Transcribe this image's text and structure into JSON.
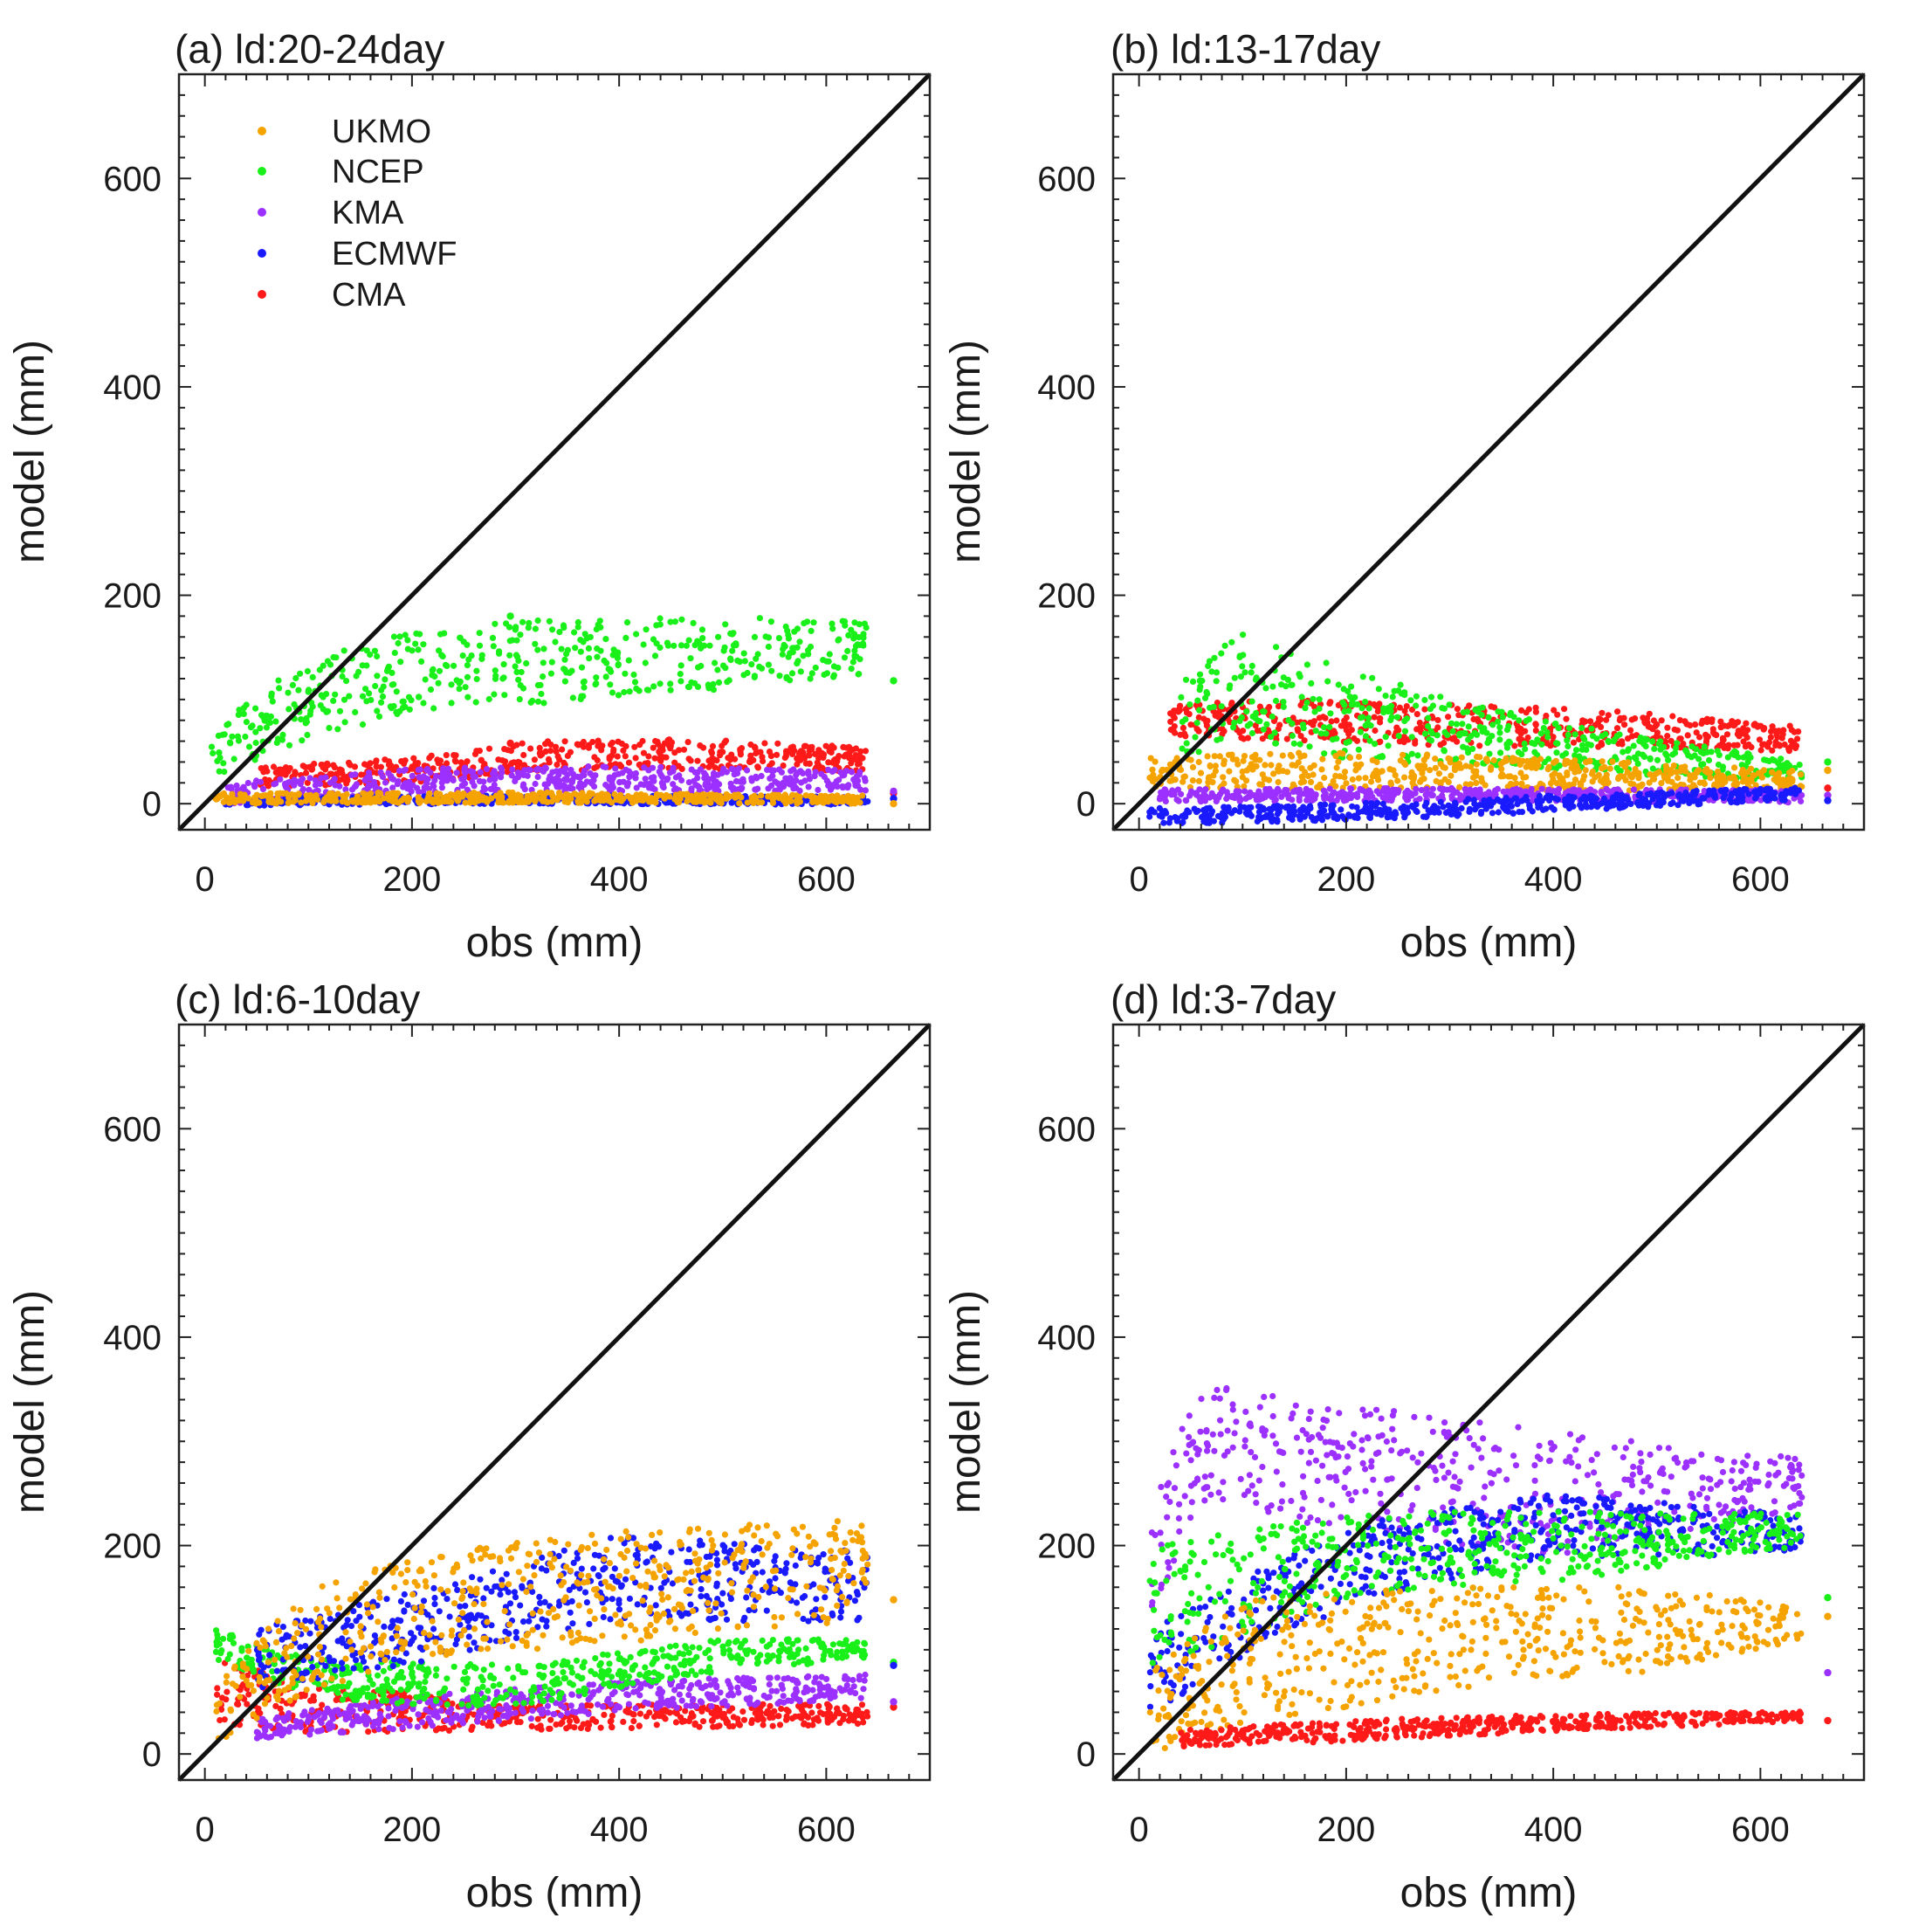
{
  "figure": {
    "colors": {
      "UKMO": "#f5a300",
      "NCEP": "#19f019",
      "KMA": "#9b30ff",
      "ECMWF": "#1a1aff",
      "CMA": "#ff1a1a",
      "diagonal": "#111111"
    },
    "legend": [
      "UKMO",
      "NCEP",
      "KMA",
      "ECMWF",
      "CMA"
    ]
  },
  "chart_data": [
    {
      "type": "scatter",
      "title": "(a) ld:20-24day",
      "xlabel": "obs (mm)",
      "ylabel": "model (mm)",
      "xlim": [
        -25,
        700
      ],
      "ylim": [
        -25,
        700
      ],
      "xticks": [
        0,
        200,
        400,
        600
      ],
      "yticks": [
        0,
        200,
        400,
        600
      ],
      "reference_line": "y = x",
      "show_legend": true,
      "series": [
        {
          "name": "NCEP",
          "trend": [
            [
              5,
              45,
              25
            ],
            [
              100,
              100,
              40
            ],
            [
              200,
              125,
              40
            ],
            [
              300,
              135,
              40
            ],
            [
              400,
              140,
              40
            ],
            [
              500,
              145,
              35
            ],
            [
              640,
              150,
              25
            ]
          ],
          "outliers": [
            [
              295,
              180
            ],
            [
              665,
              118
            ]
          ]
        },
        {
          "name": "CMA",
          "trend": [
            [
              50,
              25,
              10
            ],
            [
              200,
              32,
              12
            ],
            [
              320,
              45,
              15
            ],
            [
              450,
              48,
              15
            ],
            [
              640,
              42,
              12
            ]
          ],
          "outliers": [
            [
              295,
              58
            ],
            [
              665,
              10
            ]
          ]
        },
        {
          "name": "KMA",
          "trend": [
            [
              20,
              10,
              10
            ],
            [
              200,
              22,
              12
            ],
            [
              400,
              24,
              12
            ],
            [
              640,
              22,
              10
            ]
          ],
          "outliers": [
            [
              665,
              12
            ]
          ]
        },
        {
          "name": "ECMWF",
          "trend": [
            [
              20,
              2,
              4
            ],
            [
              300,
              4,
              4
            ],
            [
              640,
              3,
              4
            ]
          ],
          "outliers": [
            [
              665,
              5
            ]
          ]
        },
        {
          "name": "UKMO",
          "trend": [
            [
              10,
              5,
              5
            ],
            [
              300,
              6,
              5
            ],
            [
              640,
              4,
              4
            ]
          ],
          "outliers": [
            [
              665,
              0
            ]
          ]
        }
      ]
    },
    {
      "type": "scatter",
      "title": "(b) ld:13-17day",
      "xlabel": "obs (mm)",
      "ylabel": "model (mm)",
      "xlim": [
        -25,
        700
      ],
      "ylim": [
        -25,
        700
      ],
      "xticks": [
        0,
        200,
        400,
        600
      ],
      "yticks": [
        0,
        200,
        400,
        600
      ],
      "reference_line": "y = x",
      "show_legend": false,
      "series": [
        {
          "name": "CMA",
          "trend": [
            [
              30,
              80,
              15
            ],
            [
              150,
              80,
              20
            ],
            [
              300,
              75,
              20
            ],
            [
              450,
              72,
              18
            ],
            [
              640,
              62,
              12
            ]
          ],
          "outliers": [
            [
              665,
              15
            ]
          ]
        },
        {
          "name": "NCEP",
          "trend": [
            [
              40,
              80,
              40
            ],
            [
              100,
              115,
              50
            ],
            [
              200,
              85,
              45
            ],
            [
              300,
              70,
              30
            ],
            [
              450,
              50,
              20
            ],
            [
              640,
              30,
              10
            ]
          ],
          "outliers": [
            [
              665,
              40
            ]
          ]
        },
        {
          "name": "UKMO",
          "trend": [
            [
              10,
              30,
              15
            ],
            [
              200,
              32,
              18
            ],
            [
              400,
              28,
              15
            ],
            [
              640,
              22,
              10
            ]
          ],
          "outliers": [
            [
              665,
              32
            ]
          ]
        },
        {
          "name": "KMA",
          "trend": [
            [
              20,
              8,
              6
            ],
            [
              300,
              9,
              6
            ],
            [
              640,
              7,
              6
            ]
          ],
          "outliers": [
            [
              665,
              8
            ]
          ]
        },
        {
          "name": "ECMWF",
          "trend": [
            [
              10,
              -12,
              8
            ],
            [
              200,
              -8,
              8
            ],
            [
              400,
              0,
              8
            ],
            [
              640,
              10,
              6
            ]
          ],
          "outliers": [
            [
              665,
              3
            ]
          ]
        }
      ]
    },
    {
      "type": "scatter",
      "title": "(c) ld:6-10day",
      "xlabel": "obs (mm)",
      "ylabel": "model (mm)",
      "xlim": [
        -25,
        700
      ],
      "ylim": [
        -25,
        700
      ],
      "xticks": [
        0,
        200,
        400,
        600
      ],
      "yticks": [
        0,
        200,
        400,
        600
      ],
      "reference_line": "y = x",
      "show_legend": false,
      "series": [
        {
          "name": "CMA",
          "trend": [
            [
              10,
              60,
              30
            ],
            [
              100,
              45,
              25
            ],
            [
              300,
              35,
              12
            ],
            [
              640,
              38,
              10
            ]
          ],
          "outliers": [
            [
              665,
              45
            ]
          ]
        },
        {
          "name": "KMA",
          "trend": [
            [
              50,
              25,
              10
            ],
            [
              200,
              40,
              15
            ],
            [
              400,
              55,
              15
            ],
            [
              640,
              65,
              12
            ]
          ],
          "outliers": [
            [
              665,
              50
            ]
          ]
        },
        {
          "name": "NCEP",
          "trend": [
            [
              10,
              105,
              15
            ],
            [
              120,
              70,
              20
            ],
            [
              300,
              65,
              20
            ],
            [
              500,
              95,
              15
            ],
            [
              640,
              100,
              10
            ]
          ],
          "outliers": [
            [
              665,
              88
            ]
          ]
        },
        {
          "name": "ECMWF",
          "trend": [
            [
              50,
              90,
              30
            ],
            [
              200,
              120,
              35
            ],
            [
              400,
              170,
              40
            ],
            [
              640,
              160,
              35
            ]
          ],
          "outliers": [
            [
              665,
              85
            ]
          ]
        },
        {
          "name": "UKMO",
          "trend": [
            [
              10,
              40,
              30
            ],
            [
              100,
              110,
              50
            ],
            [
              200,
              140,
              50
            ],
            [
              400,
              160,
              55
            ],
            [
              600,
              175,
              50
            ],
            [
              640,
              190,
              30
            ]
          ],
          "outliers": [
            [
              300,
              198
            ],
            [
              665,
              148
            ]
          ]
        }
      ]
    },
    {
      "type": "scatter",
      "title": "(d) ld:3-7day",
      "xlabel": "obs (mm)",
      "ylabel": "model (mm)",
      "xlim": [
        -25,
        700
      ],
      "ylim": [
        -25,
        700
      ],
      "xticks": [
        0,
        200,
        400,
        600
      ],
      "yticks": [
        0,
        200,
        400,
        600
      ],
      "reference_line": "y = x",
      "show_legend": false,
      "series": [
        {
          "name": "KMA",
          "trend": [
            [
              10,
              180,
              50
            ],
            [
              60,
              300,
              60
            ],
            [
              200,
              275,
              60
            ],
            [
              400,
              250,
              60
            ],
            [
              640,
              260,
              25
            ]
          ],
          "outliers": [
            [
              665,
              78
            ]
          ]
        },
        {
          "name": "ECMWF",
          "trend": [
            [
              10,
              80,
              40
            ],
            [
              200,
              180,
              40
            ],
            [
              400,
              220,
              30
            ],
            [
              640,
              210,
              20
            ]
          ],
          "outliers": []
        },
        {
          "name": "NCEP",
          "trend": [
            [
              10,
              140,
              60
            ],
            [
              200,
              190,
              40
            ],
            [
              400,
              200,
              35
            ],
            [
              640,
              215,
              15
            ]
          ],
          "outliers": [
            [
              665,
              150
            ]
          ]
        },
        {
          "name": "UKMO",
          "trend": [
            [
              10,
              40,
              40
            ],
            [
              100,
              90,
              60
            ],
            [
              300,
              110,
              50
            ],
            [
              500,
              120,
              40
            ],
            [
              640,
              125,
              15
            ]
          ],
          "outliers": [
            [
              665,
              132
            ]
          ]
        },
        {
          "name": "CMA",
          "trend": [
            [
              40,
              15,
              8
            ],
            [
              200,
              22,
              10
            ],
            [
              400,
              30,
              8
            ],
            [
              640,
              36,
              5
            ]
          ],
          "outliers": [
            [
              665,
              32
            ]
          ]
        }
      ]
    }
  ]
}
